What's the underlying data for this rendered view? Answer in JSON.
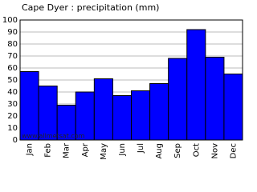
{
  "chart_data": {
    "type": "bar",
    "title": "Cape Dyer : precipitation (mm)",
    "categories": [
      "Jan",
      "Feb",
      "Mar",
      "Apr",
      "May",
      "Jun",
      "Jul",
      "Aug",
      "Sep",
      "Oct",
      "Nov",
      "Dec"
    ],
    "values": [
      57,
      45,
      29,
      40,
      51,
      37,
      41,
      47,
      68,
      92,
      69,
      55
    ],
    "color": "#0000ff",
    "ylim": [
      0,
      100
    ],
    "yticks": [
      0,
      10,
      20,
      30,
      40,
      50,
      60,
      70,
      80,
      90,
      100
    ],
    "grid": true,
    "annotation": "www.allmetsat.com"
  }
}
